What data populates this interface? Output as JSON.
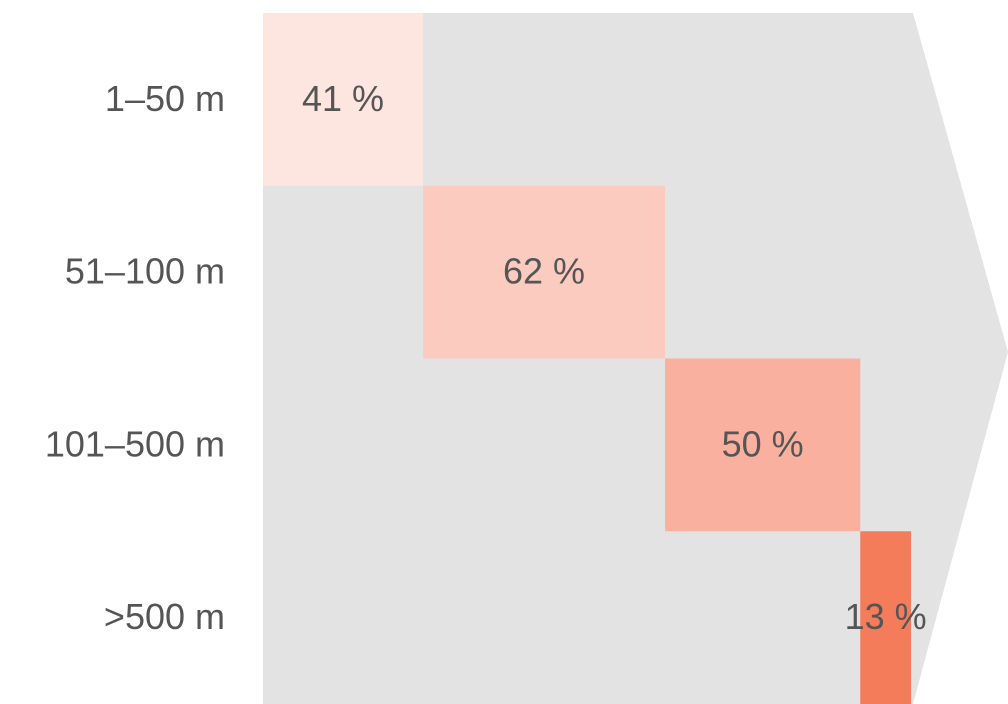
{
  "chart_data": {
    "type": "cascade",
    "categories": [
      "1–50 m",
      "51–100 m",
      "101–500 m",
      ">500 m"
    ],
    "values": [
      41,
      62,
      50,
      13
    ],
    "value_labels": [
      "41 %",
      "62 %",
      "50 %",
      "13 %"
    ],
    "colors": [
      "#fde5e0",
      "#fbcbc0",
      "#f9b09f",
      "#f47c5a"
    ]
  }
}
